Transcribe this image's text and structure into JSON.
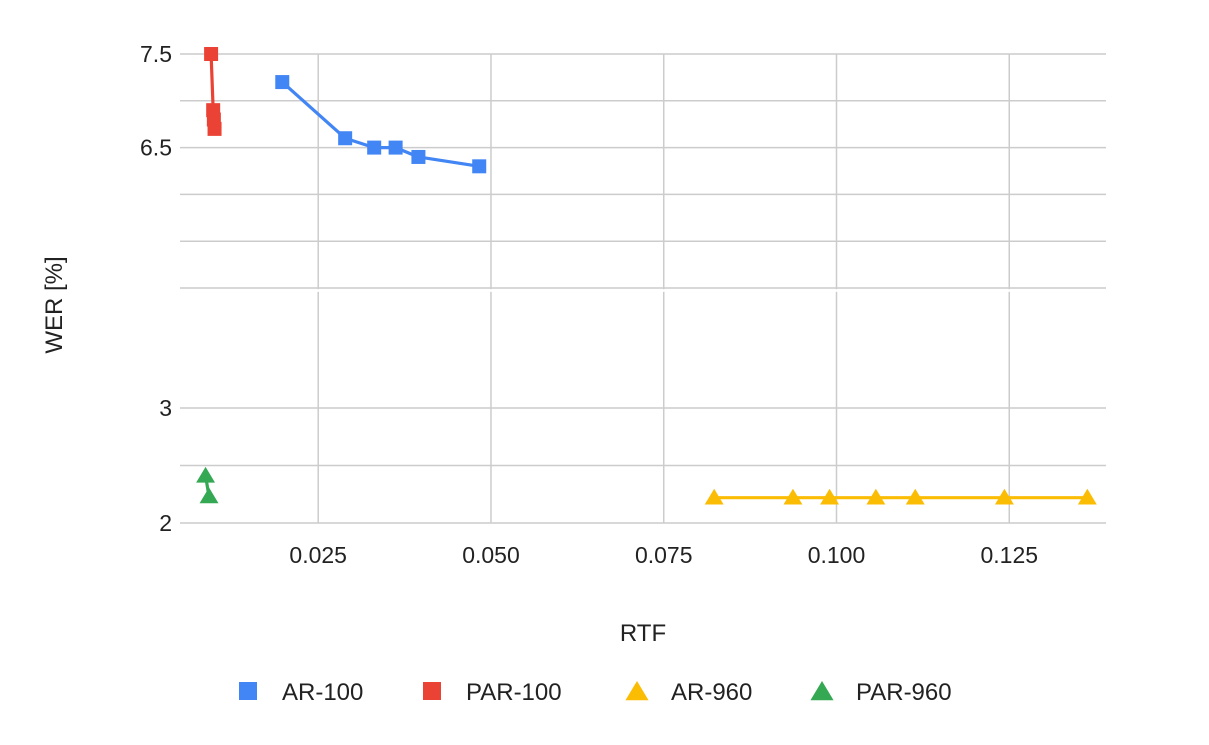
{
  "chart_data": {
    "type": "scatter",
    "title": "",
    "xlabel": "RTF",
    "ylabel": "WER [%]",
    "x_ticks": [
      "0.025",
      "0.050",
      "0.075",
      "0.100",
      "0.125"
    ],
    "x_tick_values": [
      0.025,
      0.05,
      0.075,
      0.1,
      0.125
    ],
    "xlim": [
      0.005,
      0.139
    ],
    "y_scale": "broken",
    "y_segments": [
      {
        "range": [
          5.0,
          7.5
        ],
        "ticks": [
          "6.5",
          "7.5"
        ],
        "tick_values": [
          6.5,
          7.5
        ],
        "grid_values": [
          5.0,
          5.5,
          6.0,
          6.5,
          7.0,
          7.5
        ]
      },
      {
        "range": [
          2.0,
          4.0
        ],
        "ticks": [
          "2",
          "3"
        ],
        "tick_values": [
          2.0,
          3.0
        ],
        "grid_values": [
          2.0,
          2.5,
          3.0
        ]
      }
    ],
    "grid": true,
    "legend_position": "bottom",
    "series": [
      {
        "name": "AR-100",
        "marker": "square",
        "color": "#4285f4",
        "segment": 0,
        "x": [
          0.0198,
          0.0289,
          0.0331,
          0.0362,
          0.0395,
          0.0483
        ],
        "y": [
          7.2,
          6.6,
          6.5,
          6.5,
          6.4,
          6.3
        ]
      },
      {
        "name": "PAR-100",
        "marker": "square",
        "color": "#ea4335",
        "segment": 0,
        "x": [
          0.0095,
          0.0098,
          0.0099,
          0.01
        ],
        "y": [
          7.5,
          6.9,
          6.8,
          6.7
        ]
      },
      {
        "name": "AR-960",
        "marker": "triangle",
        "color": "#fbbc04",
        "segment": 1,
        "x": [
          0.0823,
          0.0937,
          0.099,
          0.1057,
          0.1114,
          0.1243,
          0.1363
        ],
        "y": [
          2.22,
          2.22,
          2.22,
          2.22,
          2.22,
          2.22,
          2.22
        ]
      },
      {
        "name": "PAR-960",
        "marker": "triangle",
        "color": "#34a853",
        "segment": 1,
        "x": [
          0.0087,
          0.0092
        ],
        "y": [
          2.41,
          2.23
        ]
      }
    ]
  }
}
